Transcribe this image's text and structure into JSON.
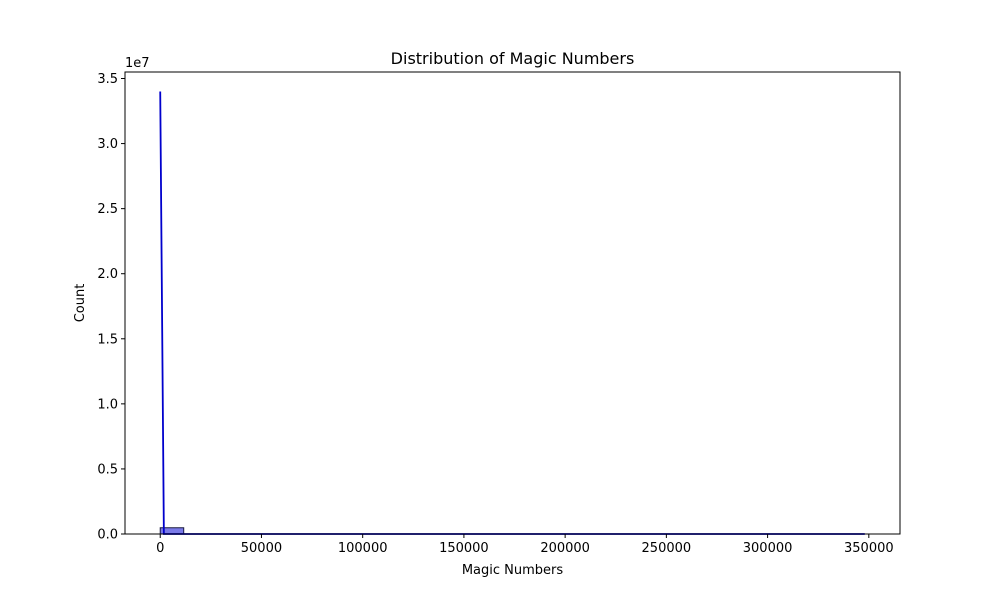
{
  "chart_data": {
    "type": "bar",
    "title": "Distribution of Magic Numbers",
    "xlabel": "Magic Numbers",
    "ylabel": "Count",
    "y_offset_label": "1e7",
    "xlim": [
      -17400,
      365400
    ],
    "ylim": [
      0,
      35500000
    ],
    "x_ticks": [
      0,
      50000,
      100000,
      150000,
      200000,
      250000,
      300000,
      350000
    ],
    "x_tick_labels": [
      "0",
      "50000",
      "100000",
      "150000",
      "200000",
      "250000",
      "300000",
      "350000"
    ],
    "y_ticks": [
      0,
      5000000,
      10000000,
      15000000,
      20000000,
      25000000,
      30000000,
      35000000
    ],
    "y_tick_labels": [
      "0.0",
      "0.5",
      "1.0",
      "1.5",
      "2.0",
      "2.5",
      "3.0",
      "3.5"
    ],
    "grid": false,
    "bins": [
      {
        "x0": 0,
        "x1": 11600,
        "count": 480000
      },
      {
        "x0": 11600,
        "x1": 23200,
        "count": 0
      },
      {
        "x0": 23200,
        "x1": 34800,
        "count": 0
      },
      {
        "x0": 34800,
        "x1": 46400,
        "count": 0
      },
      {
        "x0": 46400,
        "x1": 58000,
        "count": 0
      },
      {
        "x0": 58000,
        "x1": 69600,
        "count": 0
      },
      {
        "x0": 69600,
        "x1": 81200,
        "count": 0
      },
      {
        "x0": 81200,
        "x1": 92800,
        "count": 0
      },
      {
        "x0": 92800,
        "x1": 104400,
        "count": 0
      },
      {
        "x0": 104400,
        "x1": 116000,
        "count": 0
      },
      {
        "x0": 116000,
        "x1": 127600,
        "count": 0
      },
      {
        "x0": 127600,
        "x1": 139200,
        "count": 0
      },
      {
        "x0": 139200,
        "x1": 150800,
        "count": 0
      },
      {
        "x0": 150800,
        "x1": 162400,
        "count": 0
      },
      {
        "x0": 162400,
        "x1": 174000,
        "count": 0
      },
      {
        "x0": 174000,
        "x1": 185600,
        "count": 0
      },
      {
        "x0": 185600,
        "x1": 197200,
        "count": 0
      },
      {
        "x0": 197200,
        "x1": 208800,
        "count": 0
      },
      {
        "x0": 208800,
        "x1": 220400,
        "count": 0
      },
      {
        "x0": 220400,
        "x1": 232000,
        "count": 0
      },
      {
        "x0": 232000,
        "x1": 243600,
        "count": 0
      },
      {
        "x0": 243600,
        "x1": 255200,
        "count": 0
      },
      {
        "x0": 255200,
        "x1": 266800,
        "count": 0
      },
      {
        "x0": 266800,
        "x1": 278400,
        "count": 0
      },
      {
        "x0": 278400,
        "x1": 290000,
        "count": 0
      },
      {
        "x0": 290000,
        "x1": 301600,
        "count": 0
      },
      {
        "x0": 301600,
        "x1": 313200,
        "count": 0
      },
      {
        "x0": 313200,
        "x1": 324800,
        "count": 0
      },
      {
        "x0": 324800,
        "x1": 336400,
        "count": 0
      },
      {
        "x0": 336400,
        "x1": 348000,
        "count": 0
      }
    ],
    "kde": {
      "x": [
        0,
        1800,
        4000,
        10000,
        50000,
        100000,
        200000,
        300000,
        348000
      ],
      "y": [
        34000000,
        0,
        0,
        0,
        0,
        0,
        0,
        0,
        0
      ]
    },
    "colors": {
      "bar_fill": "#6b6be6",
      "bar_edge": "#1a1a40",
      "kde_line": "#0000cc",
      "axes": "#000000"
    }
  }
}
